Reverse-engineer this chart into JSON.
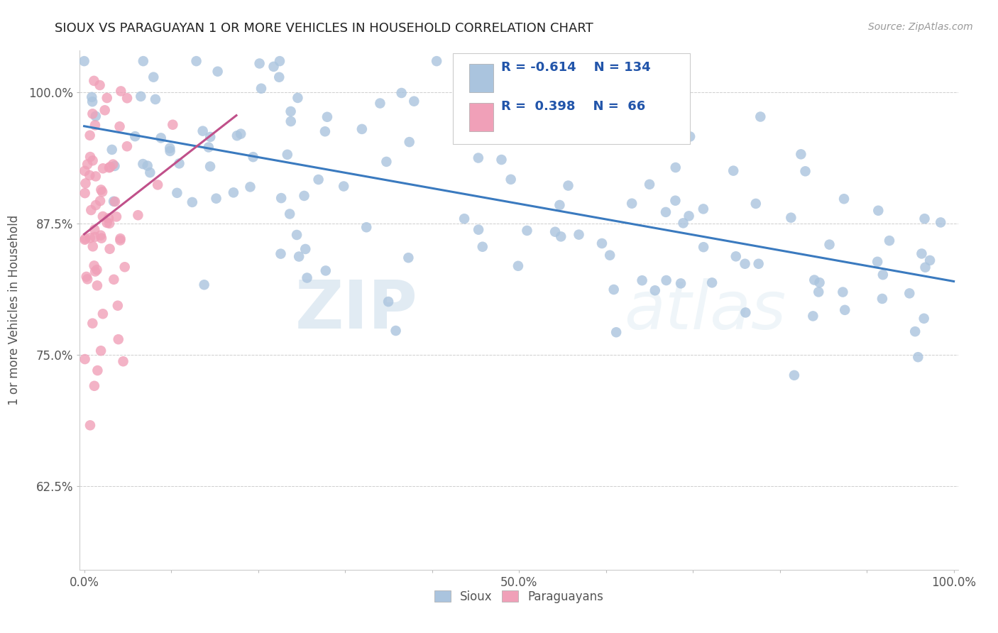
{
  "title": "SIOUX VS PARAGUAYAN 1 OR MORE VEHICLES IN HOUSEHOLD CORRELATION CHART",
  "source_text": "Source: ZipAtlas.com",
  "ylabel": "1 or more Vehicles in Household",
  "ytick_labels": [
    "62.5%",
    "75.0%",
    "87.5%",
    "100.0%"
  ],
  "xtick_labels": [
    "0.0%",
    "",
    "",
    "",
    "",
    "50.0%",
    "",
    "",
    "",
    "",
    "100.0%"
  ],
  "legend_r_sioux": "-0.614",
  "legend_n_sioux": "134",
  "legend_r_para": "0.398",
  "legend_n_para": "66",
  "sioux_color": "#aac4de",
  "para_color": "#f0a0b8",
  "trend_color_sioux": "#3a7abf",
  "trend_color_para": "#c0508a",
  "watermark_zip": "ZIP",
  "watermark_atlas": "atlas",
  "background_color": "#ffffff",
  "grid_color": "#d0d0d0",
  "title_color": "#222222",
  "label_color": "#555555",
  "legend_text_color": "#2255aa"
}
